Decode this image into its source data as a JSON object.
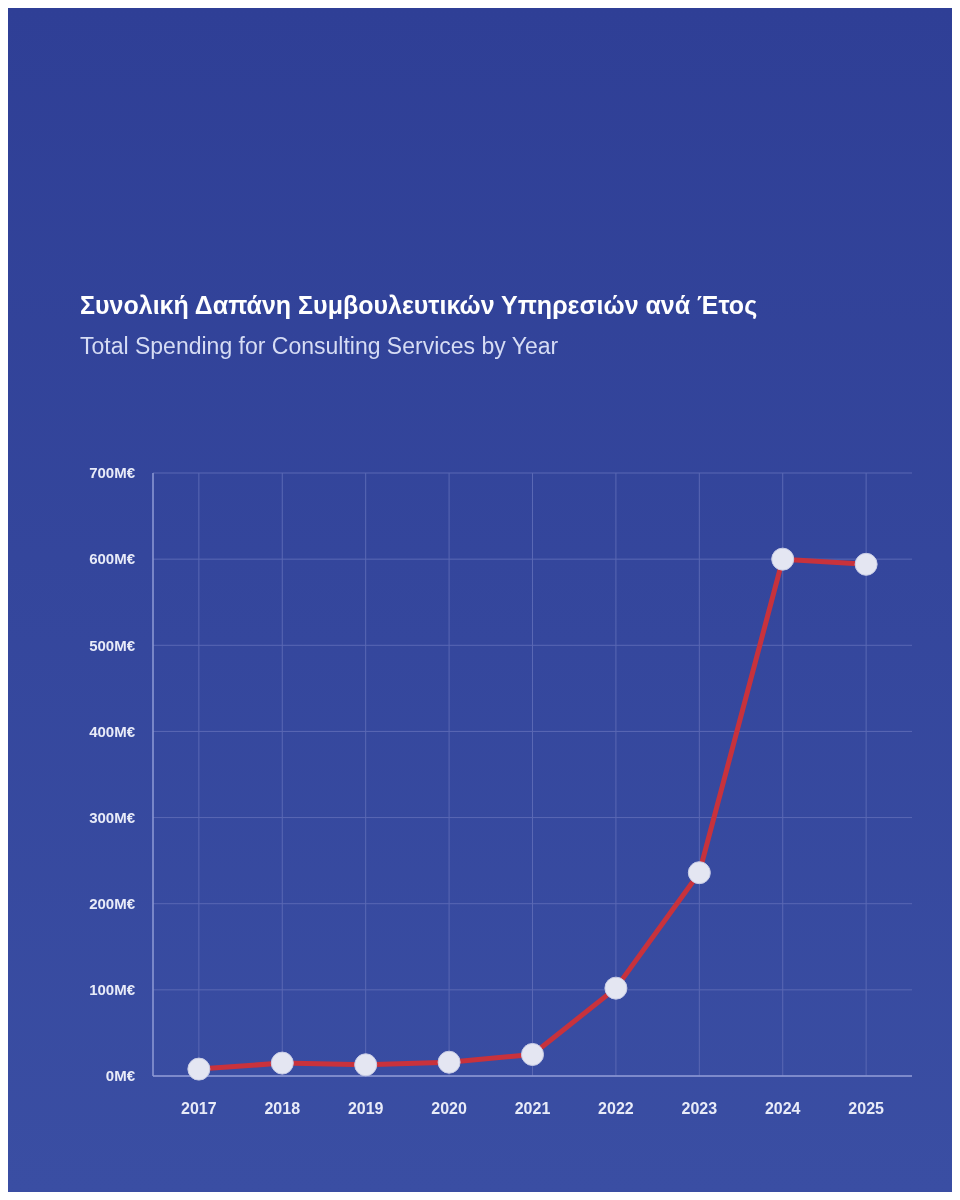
{
  "chart_data": {
    "type": "line",
    "title": "Συνολική Δαπάνη Συμβουλευτικών Υπηρεσιών ανά Έτος",
    "subtitle": "Total Spending for Consulting Services by Year",
    "categories": [
      "2017",
      "2018",
      "2019",
      "2020",
      "2021",
      "2022",
      "2023",
      "2024",
      "2025"
    ],
    "series": [
      {
        "color": "#c8323c",
        "values": [
          8,
          15,
          13,
          16,
          25,
          102,
          236,
          600,
          594
        ]
      }
    ],
    "ylim": [
      0,
      700
    ],
    "yticks": [
      {
        "value": 0,
        "label": "0M€"
      },
      {
        "value": 100,
        "label": "100M€"
      },
      {
        "value": 200,
        "label": "200M€"
      },
      {
        "value": 300,
        "label": "300M€"
      },
      {
        "value": 400,
        "label": "400M€"
      },
      {
        "value": 500,
        "label": "500M€"
      },
      {
        "value": 600,
        "label": "600M€"
      },
      {
        "value": 700,
        "label": "700M€"
      }
    ],
    "grid": true,
    "marker": "circle",
    "line_style": "solid"
  }
}
